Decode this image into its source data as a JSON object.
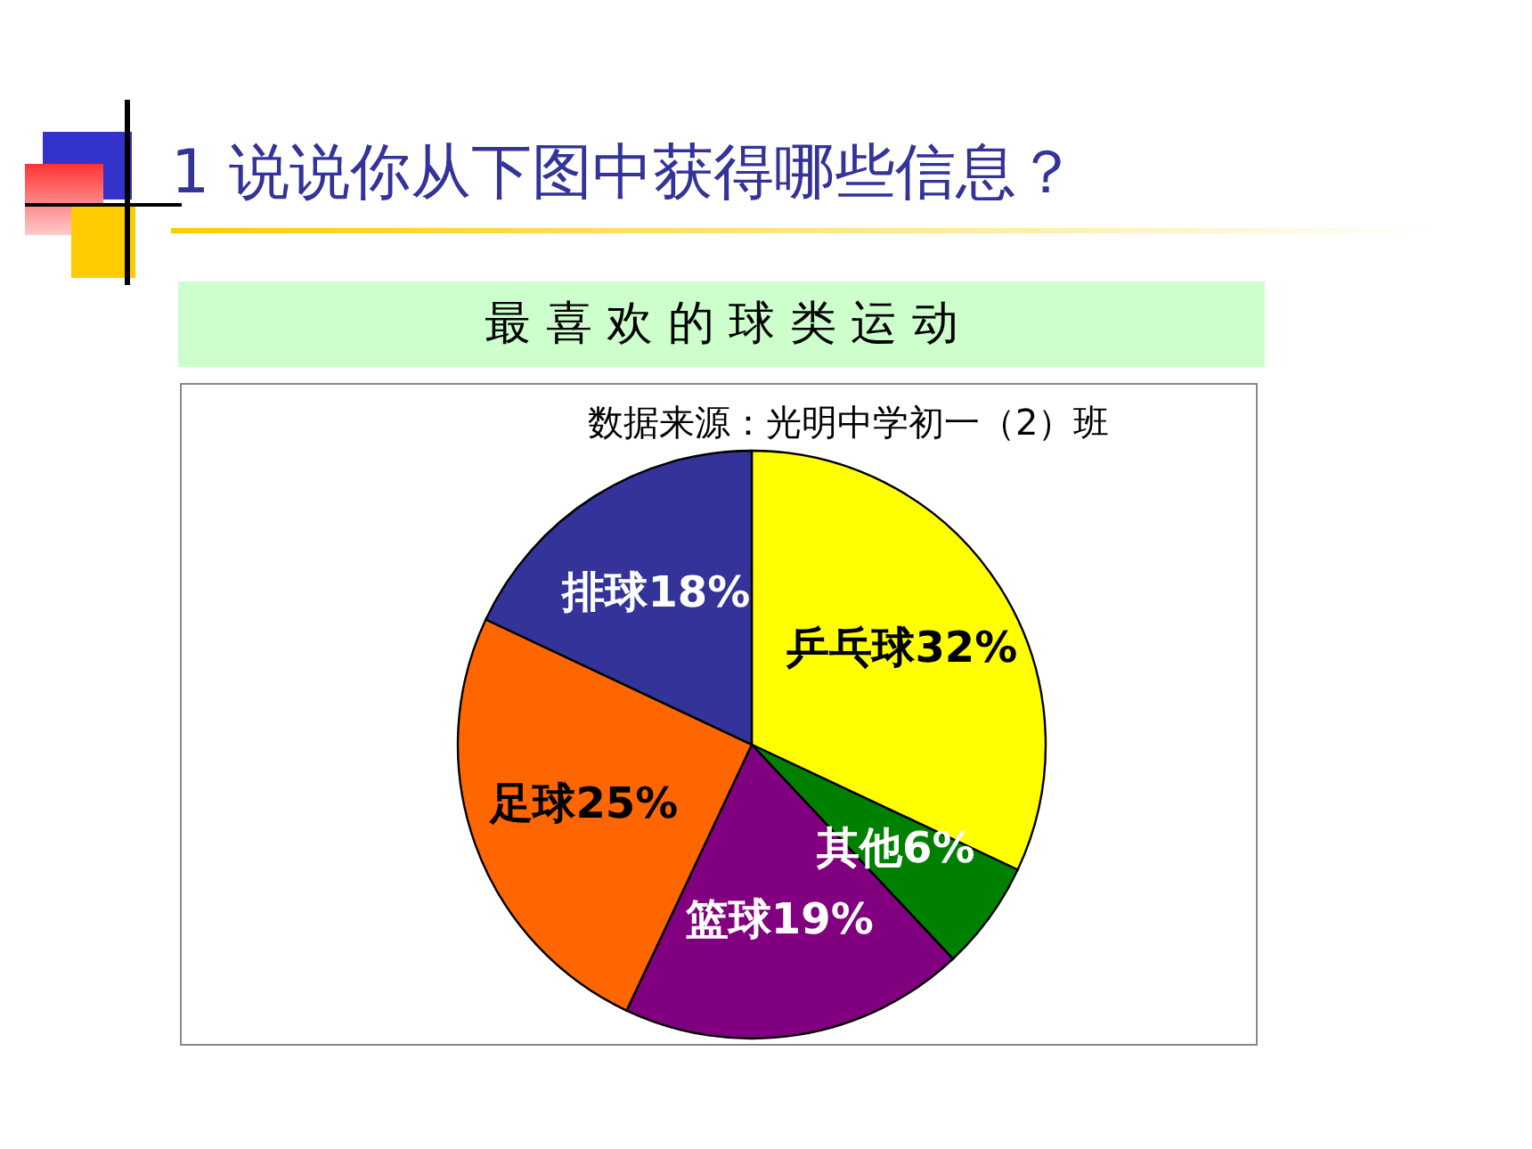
{
  "chart_data": {
    "type": "pie",
    "title": "1 说说你从下图中获得哪些信息？",
    "subtitle": "最 喜 欢 的 球 类 运 动",
    "annotations": [
      "数据来源：光明中学初一（2）班"
    ],
    "categories": [
      "乒乓球",
      "其他",
      "篮球",
      "足球",
      "排球"
    ],
    "values": [
      32,
      6,
      19,
      25,
      18
    ],
    "value_labels": [
      "32%",
      "6%",
      "19%",
      "25%",
      "18%"
    ],
    "colors": [
      "#ffff00",
      "#008000",
      "#800080",
      "#ff6600",
      "#333399"
    ]
  }
}
